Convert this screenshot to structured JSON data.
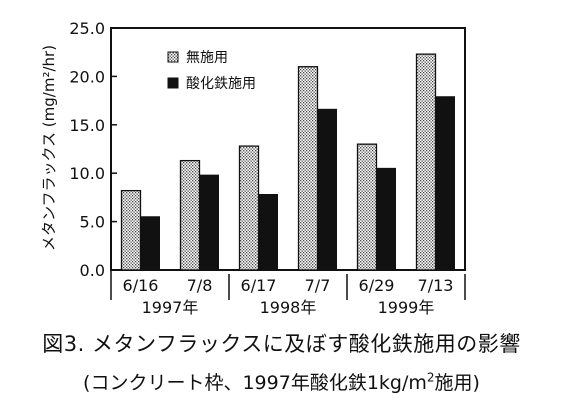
{
  "chart_data": {
    "type": "bar",
    "ylabel": "メタンフラックス (mg/m²/hr)",
    "ylim": [
      0,
      25
    ],
    "yticks": [
      "0.0",
      "5.0",
      "10.0",
      "15.0",
      "20.0",
      "25.0"
    ],
    "categories": [
      "6/16",
      "7/8",
      "6/17",
      "7/7",
      "6/29",
      "7/13"
    ],
    "groups": [
      {
        "label": "1997年",
        "categories": [
          "6/16",
          "7/8"
        ]
      },
      {
        "label": "1998年",
        "categories": [
          "6/17",
          "7/7"
        ]
      },
      {
        "label": "1999年",
        "categories": [
          "6/29",
          "7/13"
        ]
      }
    ],
    "series": [
      {
        "name": "無施用",
        "values": [
          8.2,
          11.3,
          12.8,
          21.0,
          13.0,
          22.3
        ],
        "fill": "dotted",
        "color": "#cccccc"
      },
      {
        "name": "酸化鉄施用",
        "values": [
          5.5,
          9.8,
          7.8,
          16.6,
          10.5,
          17.9
        ],
        "fill": "solid",
        "color": "#111111"
      }
    ],
    "legend": "top-left",
    "grid": false
  },
  "caption": {
    "line1": "図3. メタンフラックスに及ぼす酸化鉄施用の影響",
    "line2_a": "(コンクリート枠、1997年酸化鉄1kg/m",
    "line2_sup": "2",
    "line2_b": "施用)"
  }
}
